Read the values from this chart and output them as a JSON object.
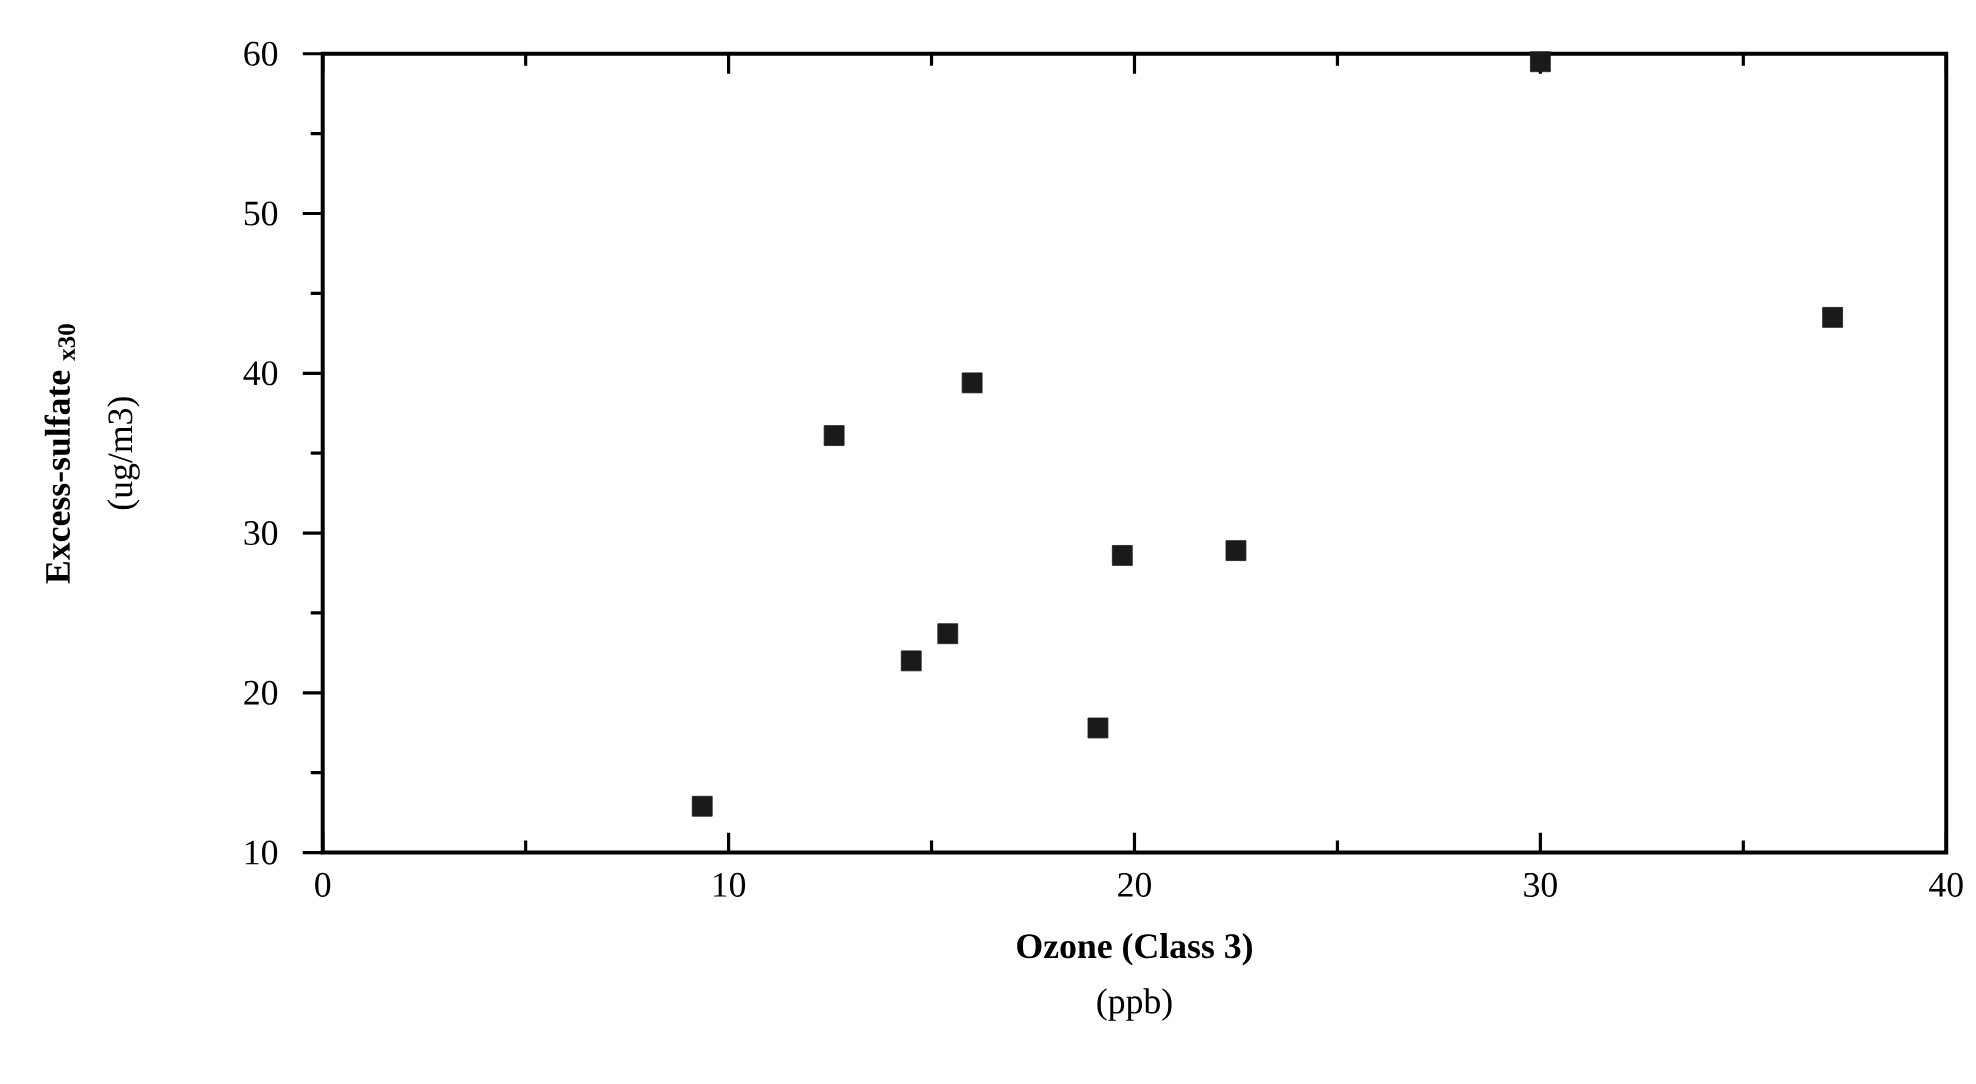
{
  "chart_data": {
    "type": "scatter",
    "xlabel": "Ozone (Class 3)",
    "ylabel": "Excess-sulfate $_{x30}$",
    "annotations": [
      "(ppb)",
      "(ug/m3)"
    ],
    "x": [
      9.35,
      12.6,
      16.0,
      14.5,
      15.4,
      19.1,
      19.7,
      22.5,
      30.0,
      37.2
    ],
    "values": [
      12.9,
      36.1,
      39.4,
      22.0,
      23.7,
      17.8,
      28.6,
      28.9,
      59.5,
      43.5
    ],
    "color": "#1a1a1a",
    "marker": "square",
    "xlim": [
      0,
      40
    ],
    "ylim": [
      10,
      60
    ],
    "xticks": [
      0,
      10,
      20,
      30,
      40
    ],
    "yticks": [
      10,
      20,
      30,
      40,
      50,
      60
    ]
  }
}
